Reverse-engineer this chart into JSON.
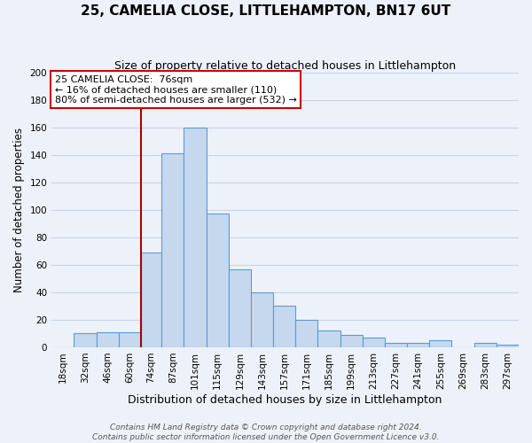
{
  "title": "25, CAMELIA CLOSE, LITTLEHAMPTON, BN17 6UT",
  "subtitle": "Size of property relative to detached houses in Littlehampton",
  "xlabel": "Distribution of detached houses by size in Littlehampton",
  "ylabel": "Number of detached properties",
  "footer_line1": "Contains HM Land Registry data © Crown copyright and database right 2024.",
  "footer_line2": "Contains public sector information licensed under the Open Government Licence v3.0.",
  "bin_labels": [
    "18sqm",
    "32sqm",
    "46sqm",
    "60sqm",
    "74sqm",
    "87sqm",
    "101sqm",
    "115sqm",
    "129sqm",
    "143sqm",
    "157sqm",
    "171sqm",
    "185sqm",
    "199sqm",
    "213sqm",
    "227sqm",
    "241sqm",
    "255sqm",
    "269sqm",
    "283sqm",
    "297sqm"
  ],
  "bin_edges": [
    18,
    32,
    46,
    60,
    74,
    87,
    101,
    115,
    129,
    143,
    157,
    171,
    185,
    199,
    213,
    227,
    241,
    255,
    269,
    283,
    297,
    311
  ],
  "counts": [
    0,
    10,
    11,
    11,
    69,
    141,
    160,
    97,
    57,
    40,
    30,
    20,
    12,
    9,
    7,
    3,
    3,
    5,
    0,
    3,
    2
  ],
  "bar_color": "#c5d8ed",
  "bar_edge_color": "#5b9bd5",
  "grid_color": "#c8d4e8",
  "background_color": "#edf2fa",
  "vline_x": 74,
  "vline_color": "#aa0000",
  "annotation_text": "25 CAMELIA CLOSE:  76sqm\n← 16% of detached houses are smaller (110)\n80% of semi-detached houses are larger (532) →",
  "annotation_box_color": "#ffffff",
  "annotation_box_edge_color": "#cc0000",
  "ylim": [
    0,
    200
  ],
  "yticks": [
    0,
    20,
    40,
    60,
    80,
    100,
    120,
    140,
    160,
    180,
    200
  ],
  "title_fontsize": 11,
  "subtitle_fontsize": 9,
  "xlabel_fontsize": 9,
  "ylabel_fontsize": 8.5,
  "tick_fontsize": 7.5,
  "annotation_fontsize": 8,
  "footer_fontsize": 6.5
}
